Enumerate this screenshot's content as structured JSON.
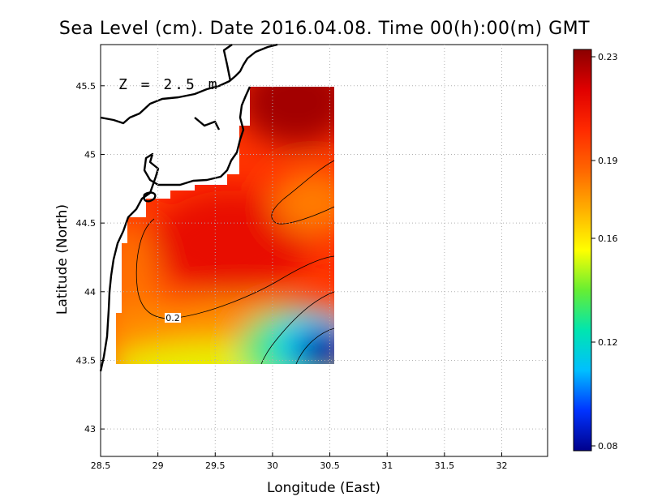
{
  "title": "Sea Level (cm). Date 2016.04.08. Time 00(h):00(m) GMT",
  "depth_label": "Z = 2.5 m",
  "x_axis": {
    "label": "Longitude (East)",
    "range": [
      28.5,
      32.4
    ],
    "ticks": [
      28.5,
      29,
      29.5,
      30,
      30.5,
      31,
      31.5,
      32
    ],
    "tick_labels": [
      "28.5",
      "29",
      "29.5",
      "30",
      "30.5",
      "31",
      "31.5",
      "32"
    ]
  },
  "y_axis": {
    "label": "Latitude (North)",
    "range": [
      42.8,
      45.8
    ],
    "ticks": [
      43,
      43.5,
      44,
      44.5,
      45,
      45.5
    ],
    "tick_labels": [
      "43",
      "43.5",
      "44",
      "44.5",
      "45",
      "45.5"
    ]
  },
  "colorbar": {
    "min": 0.08,
    "max": 0.23,
    "ticks": [
      0.08,
      0.12,
      0.16,
      0.19,
      0.23
    ],
    "tick_labels": [
      "0.08",
      "0.12",
      "0.16",
      "0.19",
      "0.23"
    ],
    "colors": [
      "#00008b",
      "#0033ff",
      "#00bfff",
      "#00e5b0",
      "#66ee33",
      "#ffff00",
      "#ffb000",
      "#ff6600",
      "#ff2a00",
      "#e00000",
      "#8b0000"
    ]
  },
  "contour_label": "0.2",
  "grid": "dotted",
  "chart_data": {
    "type": "heatmap",
    "title": "Sea Level (cm). Date 2016.04.08. Time 00(h):00(m) GMT",
    "xlabel": "Longitude (East)",
    "ylabel": "Latitude (North)",
    "xlim": [
      28.5,
      32.4
    ],
    "ylim": [
      42.8,
      45.8
    ],
    "value_range": [
      0.08,
      0.23
    ],
    "data_extent": {
      "lon": [
        28.65,
        30.55
      ],
      "lat": [
        43.48,
        45.5
      ]
    },
    "contour_levels": [
      0.12,
      0.16,
      0.19,
      0.2
    ],
    "labeled_contours": [
      "0.2"
    ],
    "grid": true
  }
}
